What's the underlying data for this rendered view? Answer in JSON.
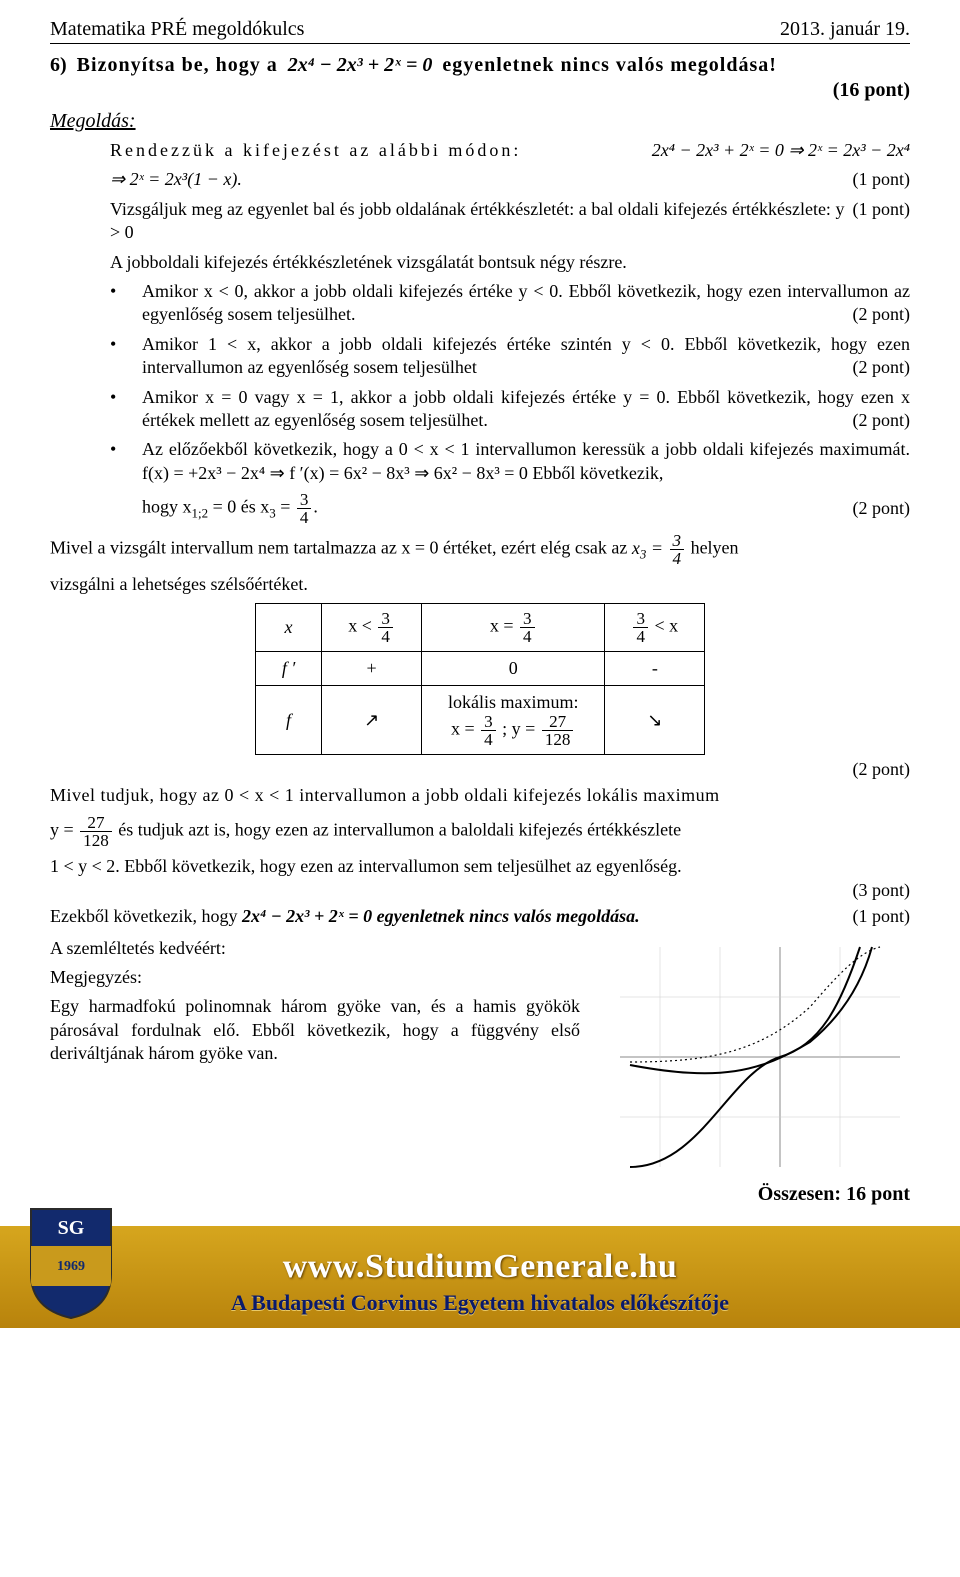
{
  "header": {
    "left": "Matematika PRÉ megoldókulcs",
    "right": "2013. január 19."
  },
  "problem": {
    "number": "6)",
    "lead": "Bizonyítsa be, hogy a",
    "equation": "2x⁴ − 2x³ + 2ˣ = 0",
    "tail": "egyenletnek nincs valós megoldása!",
    "total_points": "(16 pont)"
  },
  "solution_label": "Megoldás:",
  "body": {
    "l1a": "Rendezzük a kifejezést az alábbi módon:",
    "l1b": "2x⁴ − 2x³ + 2ˣ = 0  ⇒  2ˣ = 2x³ − 2x⁴",
    "l2": "⇒ 2ˣ = 2x³(1 − x).",
    "l2_pts": "(1 pont)",
    "l3": "Vizsgáljuk meg az egyenlet bal és jobb oldalának értékkészletét: a bal oldali kifejezés értékkészlete: y > 0",
    "l3_pts": "(1 pont)",
    "l4": "A jobboldali kifejezés értékkészletének vizsgálatát bontsuk négy részre.",
    "bullets": [
      {
        "text": "Amikor x < 0, akkor a jobb oldali kifejezés értéke y < 0. Ebből következik, hogy ezen intervallumon az egyenlőség sosem teljesülhet.",
        "pts": "(2 pont)"
      },
      {
        "text": "Amikor 1 < x, akkor a jobb oldali kifejezés értéke szintén y < 0. Ebből következik, hogy ezen intervallumon az egyenlőség sosem teljesülhet",
        "pts": "(2 pont)"
      },
      {
        "text": "Amikor x = 0 vagy x = 1, akkor a jobb oldali kifejezés értéke y = 0. Ebből következik, hogy ezen x értékek mellett az egyenlőség sosem teljesülhet.",
        "pts": "(2 pont)"
      },
      {
        "text": "Az előzőekből következik, hogy a 0 < x < 1 intervallumon keressük a jobb oldali kifejezés maximumát.  f(x) = +2x³ − 2x⁴  ⇒  f ′(x) = 6x² − 8x³  ⇒  6x² − 8x³ = 0  Ebből következik,",
        "pts": ""
      },
      {
        "text_prefix": "hogy ",
        "math_html": "x<sub>1;2</sub> = 0  és  x<sub>3</sub> = <span class='frac'><span class='num'>3</span><span class='den'>4</span></span>.",
        "pts": "(2 pont)",
        "no_bullet": true
      }
    ],
    "after_bullets_1_prefix": "Mivel a vizsgált intervallum nem tartalmazza az x = 0 értéket, ezért elég csak az ",
    "after_bullets_1_math": "x<sub>3</sub> = <span class='frac'><span class='num'>3</span><span class='den'>4</span></span>",
    "after_bullets_1_suffix": " helyen",
    "after_bullets_2": "vizsgálni a lehetséges szélsőértéket.",
    "table": {
      "rows": [
        [
          "x",
          "x &lt; <span class='frac'><span class='num'>3</span><span class='den'>4</span></span>",
          "x = <span class='frac'><span class='num'>3</span><span class='den'>4</span></span>",
          "<span class='frac'><span class='num'>3</span><span class='den'>4</span></span> &lt; x"
        ],
        [
          "f ′",
          "+",
          "0",
          "-"
        ],
        [
          "f",
          "↗",
          "lokális maximum:<br>x = <span class='frac'><span class='num'>3</span><span class='den'>4</span></span> ; y = <span class='frac'><span class='num'>27</span><span class='den'>128</span></span>",
          "↘"
        ]
      ],
      "pts": "(2 pont)"
    },
    "post1": "Mivel tudjuk, hogy az 0 < x < 1 intervallumon a jobb oldali kifejezés lokális maximum",
    "post2_html": "y = <span class='frac'><span class='num'>27</span><span class='den'>128</span></span> és tudjuk azt is, hogy ezen az intervallumon a baloldali kifejezés értékkészlete",
    "post3": "1 < y < 2. Ebből következik, hogy ezen az intervallumon sem teljesülhet az egyenlőség.",
    "post3_pts": "(3 pont)",
    "concl_prefix": "Ezekből következik, hogy ",
    "concl_bold": "2x⁴ − 2x³ + 2ˣ = 0  egyenletnek nincs valós megoldása.",
    "concl_pts": "(1 pont)",
    "illus_title": "A szemléltetés kedvéért:",
    "illus_sub": "Megjegyzés:",
    "illus_text": "Egy harmadfokú polinomnak három gyöke van, és a hamis gyökök párosával fordulnak elő. Ebből következik, hogy a függvény első deriváltjának három gyöke van.",
    "total": "Összesen: 16 pont"
  },
  "footer": {
    "url": "www.StudiumGenerale.hu",
    "sub": "A Budapesti Corvinus Egyetem hivatalos előkészítője",
    "shield_colors": {
      "bg": "#122a6d",
      "middle": "#c99a1c",
      "text": "#ffffff"
    }
  },
  "colors": {
    "text": "#000000",
    "bg": "#ffffff",
    "banner_top": "#d6a61e",
    "banner_bottom": "#b8830c",
    "banner_text": "#ffffff",
    "banner_sub": "#0a1a6b"
  }
}
